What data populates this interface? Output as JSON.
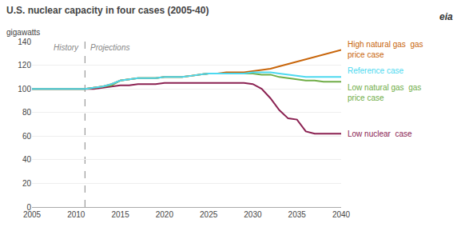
{
  "chart_data": {
    "type": "line",
    "title": "U.S. nuclear capacity in four cases (2005-40)",
    "ylabel": "gigawatts",
    "annotations": [
      "History",
      "Projections"
    ],
    "logo": "eia",
    "vline": 2011,
    "xlim": [
      2005,
      2040
    ],
    "ylim": [
      0,
      140
    ],
    "xticks": [
      2005,
      2010,
      2015,
      2020,
      2025,
      2030,
      2035,
      2040
    ],
    "yticks": [
      0,
      20,
      40,
      60,
      80,
      100,
      120,
      140
    ],
    "grid": true,
    "x": [
      2005,
      2006,
      2007,
      2008,
      2009,
      2010,
      2011,
      2012,
      2013,
      2014,
      2015,
      2016,
      2017,
      2018,
      2019,
      2020,
      2021,
      2022,
      2023,
      2024,
      2025,
      2026,
      2027,
      2028,
      2029,
      2030,
      2031,
      2032,
      2033,
      2034,
      2035,
      2036,
      2037,
      2038,
      2039,
      2040
    ],
    "series": [
      {
        "name": "Low nuclear  case",
        "color": "#8b2252",
        "values": [
          100,
          100,
          100,
          100,
          100,
          100,
          100,
          100,
          101,
          102,
          103,
          103,
          104,
          104,
          104,
          105,
          105,
          105,
          105,
          105,
          105,
          105,
          105,
          105,
          105,
          104,
          100,
          92,
          82,
          75,
          74,
          64,
          62,
          62,
          62,
          62
        ]
      },
      {
        "name": "Low natural gas  gas\nprice case",
        "color": "#70ad47",
        "values": [
          100,
          100,
          100,
          100,
          100,
          100,
          100,
          101,
          102,
          103,
          107,
          108,
          109,
          109,
          109,
          110,
          110,
          110,
          111,
          112,
          113,
          113,
          113,
          113,
          113,
          113,
          112,
          112,
          110,
          109,
          108,
          107,
          107,
          106,
          106,
          106
        ]
      },
      {
        "name": "High natural gas  gas\nprice case",
        "color": "#c8650a",
        "values": [
          100,
          100,
          100,
          100,
          100,
          100,
          100,
          101,
          102,
          104,
          107,
          108,
          109,
          109,
          109,
          110,
          110,
          110,
          111,
          112,
          113,
          113,
          114,
          114,
          114,
          115,
          116,
          117,
          119,
          121,
          123,
          125,
          127,
          129,
          131,
          133
        ]
      },
      {
        "name": "Reference case",
        "color": "#4dd9f0",
        "values": [
          100,
          100,
          100,
          100,
          100,
          100,
          100,
          101,
          102,
          104,
          107,
          108,
          109,
          109,
          109,
          110,
          110,
          110,
          111,
          112,
          113,
          113,
          113,
          113,
          113,
          114,
          114,
          114,
          113,
          112,
          111,
          110,
          110,
          110,
          110,
          110
        ]
      }
    ]
  }
}
